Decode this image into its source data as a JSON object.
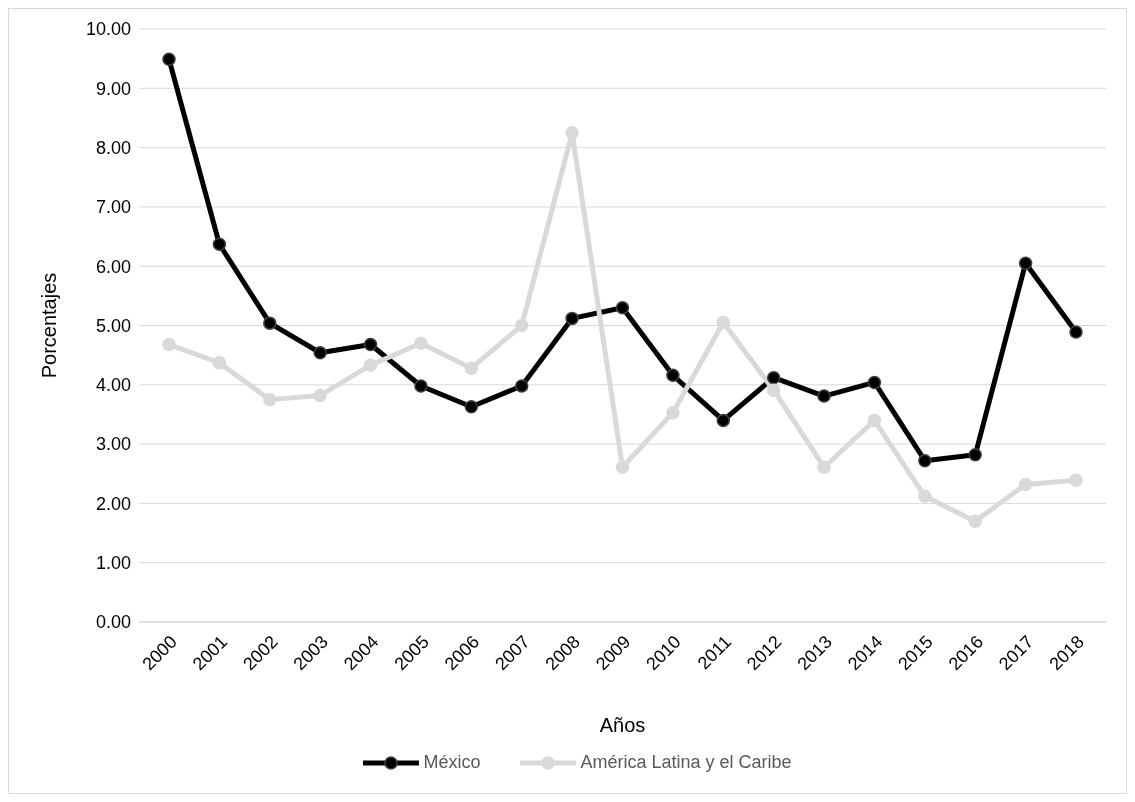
{
  "chart_data": {
    "type": "line",
    "xlabel": "Años",
    "ylabel": "Porcentajes",
    "categories": [
      "2000",
      "2001",
      "2002",
      "2003",
      "2004",
      "2005",
      "2006",
      "2007",
      "2008",
      "2009",
      "2010",
      "2011",
      "2012",
      "2013",
      "2014",
      "2015",
      "2016",
      "2017",
      "2018"
    ],
    "series": [
      {
        "name": "México",
        "color": "#000000",
        "values": [
          9.49,
          6.37,
          5.04,
          4.54,
          4.68,
          3.98,
          3.63,
          3.98,
          5.12,
          5.3,
          4.16,
          3.4,
          4.12,
          3.81,
          4.04,
          2.72,
          2.82,
          6.05,
          4.89
        ]
      },
      {
        "name": "América Latina y el Caribe",
        "color": "#d9d9d9",
        "values": [
          4.68,
          4.37,
          3.75,
          3.82,
          4.33,
          4.7,
          4.28,
          5.0,
          8.25,
          2.61,
          3.53,
          5.05,
          3.91,
          2.61,
          3.4,
          2.12,
          1.7,
          2.32,
          2.39
        ]
      }
    ],
    "ylim": [
      0,
      10
    ],
    "yticks": [
      {
        "value": 0,
        "label": "0.00"
      },
      {
        "value": 1,
        "label": "1.00"
      },
      {
        "value": 2,
        "label": "2.00"
      },
      {
        "value": 3,
        "label": "3.00"
      },
      {
        "value": 4,
        "label": "4.00"
      },
      {
        "value": 5,
        "label": "5.00"
      },
      {
        "value": 6,
        "label": "6.00"
      },
      {
        "value": 7,
        "label": "7.00"
      },
      {
        "value": 8,
        "label": "8.00"
      },
      {
        "value": 9,
        "label": "9.00"
      },
      {
        "value": 10,
        "label": "10.00"
      }
    ],
    "grid": "y",
    "legend": "bottom",
    "marker": "circle",
    "line_style": "solid"
  }
}
